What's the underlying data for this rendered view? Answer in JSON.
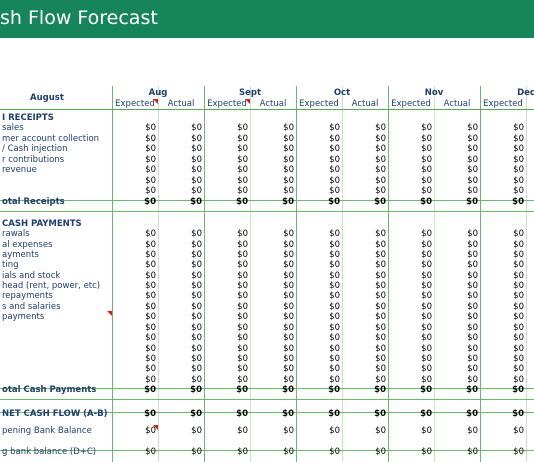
{
  "title": "sh Flow Forecast",
  "header": {
    "label": "August",
    "months": [
      "Aug",
      "Sept",
      "Oct",
      "Nov",
      "Dec"
    ],
    "columns": [
      "Expected",
      "Actual",
      "Expected",
      "Actual",
      "Expected",
      "Actual",
      "Expected",
      "Actual",
      "Expected"
    ]
  },
  "rows": [
    {
      "label": "I RECEIPTS"
    },
    {
      "label": "sales",
      "cells": [
        "$0",
        "$0",
        "$0",
        "$0",
        "$0",
        "$0",
        "$0",
        "$0",
        "$0"
      ]
    },
    {
      "label": "mer account collection",
      "cells": [
        "$0",
        "$0",
        "$0",
        "$0",
        "$0",
        "$0",
        "$0",
        "$0",
        "$0"
      ]
    },
    {
      "label": "/ Cash injection",
      "cells": [
        "$0",
        "$0",
        "$0",
        "$0",
        "$0",
        "$0",
        "$0",
        "$0",
        "$0"
      ]
    },
    {
      "label": "r contributions",
      "cells": [
        "$0",
        "$0",
        "$0",
        "$0",
        "$0",
        "$0",
        "$0",
        "$0",
        "$0"
      ]
    },
    {
      "label": "revenue",
      "cells": [
        "$0",
        "$0",
        "$0",
        "$0",
        "$0",
        "$0",
        "$0",
        "$0",
        "$0"
      ]
    },
    {
      "cells": [
        "$0",
        "$0",
        "$0",
        "$0",
        "$0",
        "$0",
        "$0",
        "$0",
        "$0"
      ]
    },
    {
      "cells": [
        "$0",
        "$0",
        "$0",
        "$0",
        "$0",
        "$0",
        "$0",
        "$0",
        "$0"
      ]
    },
    {
      "label": "otal Receipts",
      "cells": [
        "$0",
        "$0",
        "$0",
        "$0",
        "$0",
        "$0",
        "$0",
        "$0",
        "$0"
      ]
    },
    {
      "label": "CASH PAYMENTS"
    },
    {
      "label": "rawals",
      "cells": [
        "$0",
        "$0",
        "$0",
        "$0",
        "$0",
        "$0",
        "$0",
        "$0",
        "$0"
      ]
    },
    {
      "label": "al expenses",
      "cells": [
        "$0",
        "$0",
        "$0",
        "$0",
        "$0",
        "$0",
        "$0",
        "$0",
        "$0"
      ]
    },
    {
      "label": "ayments",
      "cells": [
        "$0",
        "$0",
        "$0",
        "$0",
        "$0",
        "$0",
        "$0",
        "$0",
        "$0"
      ]
    },
    {
      "label": "ting",
      "cells": [
        "$0",
        "$0",
        "$0",
        "$0",
        "$0",
        "$0",
        "$0",
        "$0",
        "$0"
      ]
    },
    {
      "label": "ials and stock",
      "cells": [
        "$0",
        "$0",
        "$0",
        "$0",
        "$0",
        "$0",
        "$0",
        "$0",
        "$0"
      ]
    },
    {
      "label": "head (rent, power, etc)",
      "cells": [
        "$0",
        "$0",
        "$0",
        "$0",
        "$0",
        "$0",
        "$0",
        "$0",
        "$0"
      ]
    },
    {
      "label": "repayments",
      "cells": [
        "$0",
        "$0",
        "$0",
        "$0",
        "$0",
        "$0",
        "$0",
        "$0",
        "$0"
      ]
    },
    {
      "label": "s and salaries",
      "cells": [
        "$0",
        "$0",
        "$0",
        "$0",
        "$0",
        "$0",
        "$0",
        "$0",
        "$0"
      ]
    },
    {
      "label": "payments",
      "cells": [
        "$0",
        "$0",
        "$0",
        "$0",
        "$0",
        "$0",
        "$0",
        "$0",
        "$0"
      ]
    },
    {
      "cells": [
        "$0",
        "$0",
        "$0",
        "$0",
        "$0",
        "$0",
        "$0",
        "$0",
        "$0"
      ]
    },
    {
      "cells": [
        "$0",
        "$0",
        "$0",
        "$0",
        "$0",
        "$0",
        "$0",
        "$0",
        "$0"
      ]
    },
    {
      "cells": [
        "$0",
        "$0",
        "$0",
        "$0",
        "$0",
        "$0",
        "$0",
        "$0",
        "$0"
      ]
    },
    {
      "cells": [
        "$0",
        "$0",
        "$0",
        "$0",
        "$0",
        "$0",
        "$0",
        "$0",
        "$0"
      ]
    },
    {
      "cells": [
        "$0",
        "$0",
        "$0",
        "$0",
        "$0",
        "$0",
        "$0",
        "$0",
        "$0"
      ]
    },
    {
      "cells": [
        "$0",
        "$0",
        "$0",
        "$0",
        "$0",
        "$0",
        "$0",
        "$0",
        "$0"
      ]
    },
    {
      "label": "otal Cash Payments",
      "cells": [
        "$0",
        "$0",
        "$0",
        "$0",
        "$0",
        "$0",
        "$0",
        "$0",
        "$0"
      ]
    },
    {
      "label": "NET CASH FLOW (A-B)",
      "cells": [
        "$0",
        "$0",
        "$0",
        "$0",
        "$0",
        "$0",
        "$0",
        "$0",
        "$0"
      ]
    },
    {
      "label": "pening Bank Balance",
      "cells": [
        "$0",
        "$0",
        "$0",
        "$0",
        "$0",
        "$0",
        "$0",
        "$0",
        "$0"
      ]
    },
    {
      "label": "g bank balance (D+C)",
      "cells": [
        "$0",
        "$0",
        "$0",
        "$0",
        "$0",
        "$0",
        "$0",
        "$0",
        "$0"
      ]
    }
  ]
}
